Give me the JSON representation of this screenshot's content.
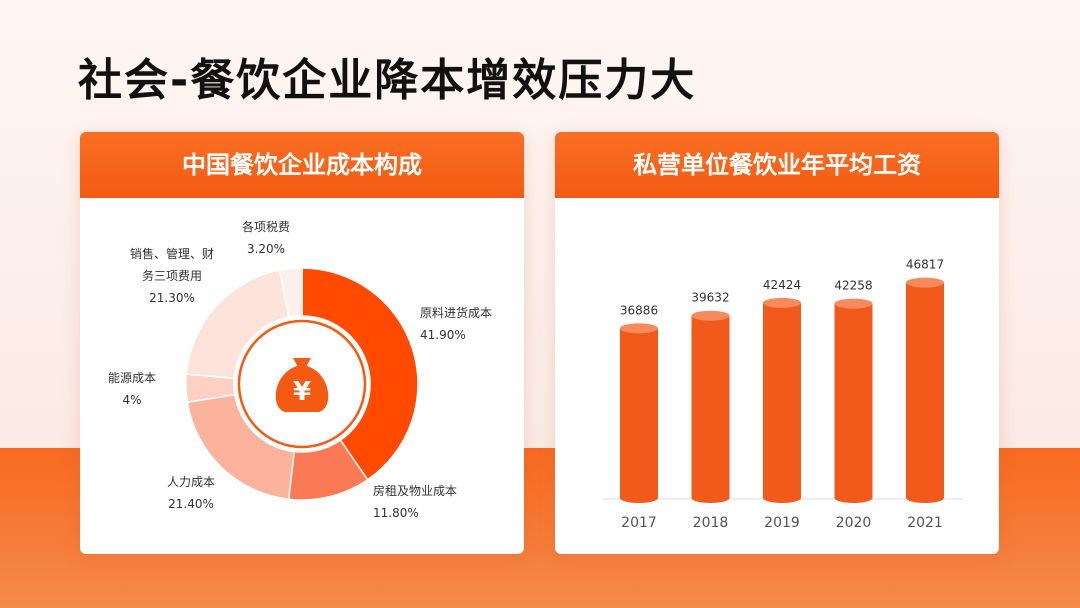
{
  "slide_title": "社会-餐饮企业降本增效压力大",
  "left_card": {
    "heading": "中国餐饮企业成本构成"
  },
  "right_card": {
    "heading": "私营单位餐饮业年平均工资"
  },
  "center_icon": "money-bag-yen-icon",
  "colors": {
    "accent": "#f45a12",
    "bar": "#f25a1c",
    "slices": [
      "#ff4a00",
      "#fb7a55",
      "#fcb39e",
      "#fdd0c3",
      "#fde3da",
      "#fdf0ec"
    ]
  },
  "chart_data": [
    {
      "type": "pie",
      "title": "中国餐饮企业成本构成",
      "slices": [
        {
          "name": "原料进货成本",
          "value": 41.9,
          "label": "41.90%"
        },
        {
          "name": "房租及物业成本",
          "value": 11.8,
          "label": "11.80%"
        },
        {
          "name": "人力成本",
          "value": 21.4,
          "label": "21.40%"
        },
        {
          "name": "能源成本",
          "value": 4,
          "label": "4%"
        },
        {
          "name": "销售、管理、财务三项费用",
          "name_lines": [
            "销售、管理、财",
            "务三项费用"
          ],
          "value": 21.3,
          "label": "21.30%"
        },
        {
          "name": "各项税费",
          "value": 3.2,
          "label": "3.20%"
        }
      ]
    },
    {
      "type": "bar",
      "title": "私营单位餐饮业年平均工资",
      "categories": [
        "2017",
        "2018",
        "2019",
        "2020",
        "2021"
      ],
      "values": [
        36886,
        39632,
        42424,
        42258,
        46817
      ],
      "ylim": [
        0,
        50000
      ],
      "grid": false
    }
  ]
}
